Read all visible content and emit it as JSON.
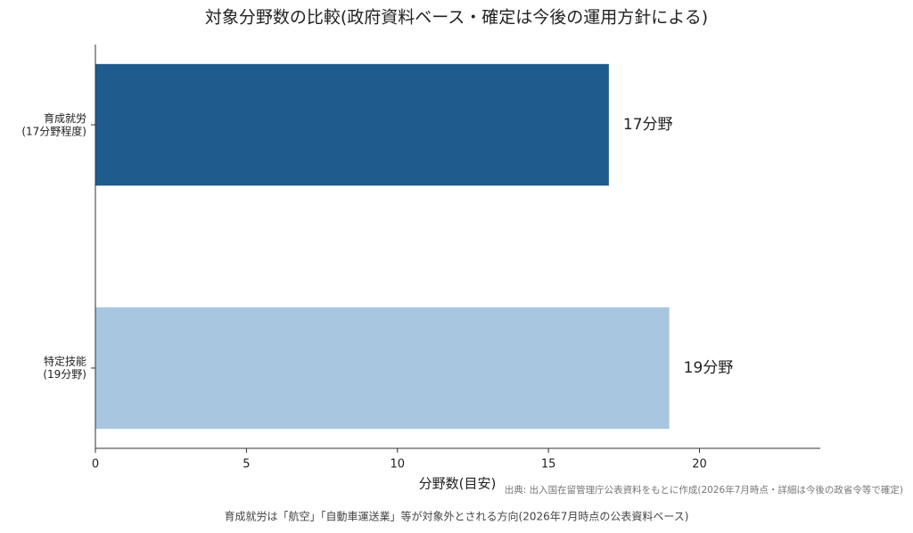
{
  "chart_data": {
    "type": "barh",
    "title": "対象分野数の比較(政府資料ベース・確定は今後の運用方針による)",
    "categories": [
      "育成就労\n(17分野程度)",
      "特定技能\n(19分野)"
    ],
    "values": [
      17,
      19
    ],
    "value_labels": [
      "17分野",
      "19分野"
    ],
    "colors": [
      "#1f5b8c",
      "#a9c6e0"
    ],
    "xlabel": "分野数(目安)",
    "xlim": [
      0,
      24
    ],
    "xticks": [
      0,
      5,
      10,
      15,
      20
    ],
    "source": "出典: 出入国在留管理庁公表資料をもとに作成(2026年7月時点・詳細は今後の政省令等で確定)",
    "footnote": "育成就労は「航空」「自動車運送業」等が対象外とされる方向(2026年7月時点の公表資料ベース)"
  }
}
